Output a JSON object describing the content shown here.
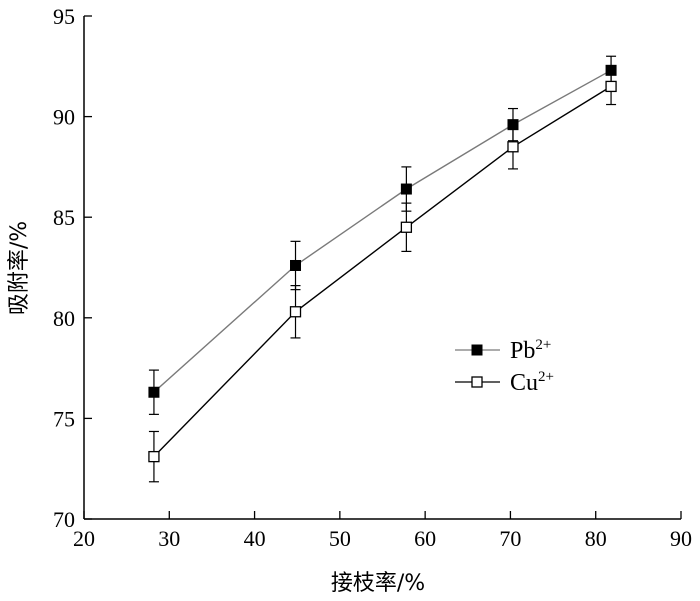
{
  "chart_data": {
    "type": "line",
    "title": "",
    "xlabel": "接枝率/%",
    "ylabel": "吸附率/%",
    "xlim": [
      20,
      90
    ],
    "ylim": [
      70,
      95
    ],
    "xticks": [
      "20",
      "30",
      "40",
      "50",
      "60",
      "70",
      "80",
      "90"
    ],
    "yticks": [
      "70",
      "75",
      "80",
      "85",
      "90",
      "95"
    ],
    "x": [
      28.2,
      44.8,
      57.8,
      70.3,
      81.8
    ],
    "series": [
      {
        "name": "Pb",
        "name_sup": "2+",
        "marker": "filled-square",
        "color": "#000000",
        "line_color": "#7a7a7a",
        "values": [
          76.3,
          82.6,
          86.4,
          89.6,
          92.3
        ],
        "errors": [
          1.1,
          1.2,
          1.1,
          0.8,
          0.7
        ]
      },
      {
        "name": "Cu",
        "name_sup": "2+",
        "marker": "open-square",
        "color": "#000000",
        "line_color": "#000000",
        "values": [
          73.1,
          80.3,
          84.5,
          88.5,
          91.5
        ],
        "errors": [
          1.25,
          1.3,
          1.2,
          1.1,
          0.9
        ]
      }
    ],
    "legend_position": "right-middle",
    "grid": false
  }
}
